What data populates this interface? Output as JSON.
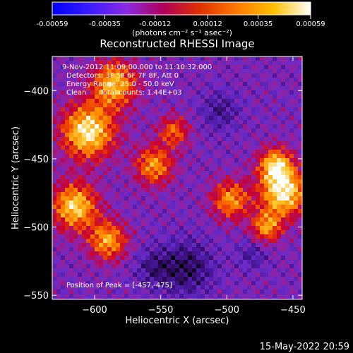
{
  "colorbar": {
    "tick_labels": [
      "-0.00059",
      "-0.00035",
      "-0.00012",
      "0.00012",
      "0.00035",
      "0.00059"
    ],
    "unit_label": "(photons cm⁻² s⁻¹ asec⁻²)",
    "range": [
      -0.00059,
      0.00059
    ],
    "stops": [
      "#0000ff",
      "#3a1cff",
      "#8a2be2",
      "#b0005a",
      "#e03000",
      "#ff7a00",
      "#ffc000",
      "#ffffff"
    ]
  },
  "info": {
    "line1": "9-Nov-2012 11:09:00.000 to 11:10:32.000",
    "line2": "Detectors: 3F 5F 6F 7F 8F, Att 0",
    "line3": "Energy Range: 25.0 - 50.0 keV",
    "line4": "Clean      Total counts: 1.44E+03",
    "peak": "Position of Peak = [-457,-475]"
  },
  "footer": {
    "timestamp": "15-May-2022 20:59"
  },
  "chart_data": {
    "type": "heatmap",
    "title": "Reconstructed RHESSI Image",
    "xlabel": "Heliocentric X (arcsec)",
    "ylabel": "Heliocentric Y (arcsec)",
    "xlim": [
      -632,
      -443
    ],
    "ylim": [
      -553,
      -375
    ],
    "x_ticks": [
      -600,
      -550,
      -500,
      -450
    ],
    "x_tick_labels": [
      "−600",
      "−550",
      "−500",
      "−450"
    ],
    "y_ticks": [
      -400,
      -450,
      -500,
      -550
    ],
    "y_tick_labels": [
      "−400",
      "−450",
      "−500",
      "−550"
    ],
    "grid": false,
    "peak_position": [
      -457,
      -475
    ],
    "bright_sources": [
      {
        "x": -605,
        "y": -430,
        "sigma": 14,
        "amp": 1.0
      },
      {
        "x": -615,
        "y": -485,
        "sigma": 12,
        "amp": 0.9
      },
      {
        "x": -585,
        "y": -395,
        "sigma": 12,
        "amp": 0.8
      },
      {
        "x": -590,
        "y": -510,
        "sigma": 10,
        "amp": 0.75
      },
      {
        "x": -555,
        "y": -455,
        "sigma": 10,
        "amp": 0.7
      },
      {
        "x": -540,
        "y": -430,
        "sigma": 8,
        "amp": 0.55
      },
      {
        "x": -497,
        "y": -480,
        "sigma": 10,
        "amp": 0.7
      },
      {
        "x": -457,
        "y": -475,
        "sigma": 12,
        "amp": 1.0
      },
      {
        "x": -463,
        "y": -455,
        "sigma": 9,
        "amp": 0.85
      },
      {
        "x": -470,
        "y": -500,
        "sigma": 8,
        "amp": 0.7
      }
    ],
    "dark_regions": [
      {
        "x": -530,
        "y": -530,
        "sigma": 14,
        "amp": 0.9
      },
      {
        "x": -555,
        "y": -530,
        "sigma": 10,
        "amp": 0.6
      },
      {
        "x": -505,
        "y": -415,
        "sigma": 10,
        "amp": 0.6
      },
      {
        "x": -480,
        "y": -520,
        "sigma": 8,
        "amp": 0.5
      }
    ]
  }
}
